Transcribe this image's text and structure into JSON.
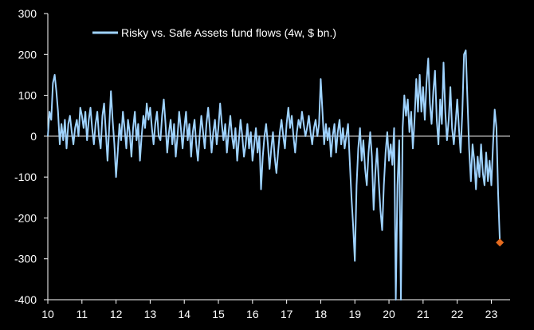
{
  "chart_data": {
    "type": "line",
    "title": "",
    "xlabel": "",
    "ylabel": "",
    "legend": "top-left",
    "grid": false,
    "xlim": [
      2010.0,
      2023.55
    ],
    "ylim": [
      -400,
      300
    ],
    "yticks": [
      300,
      200,
      100,
      0,
      -100,
      -200,
      -300,
      -400
    ],
    "xtick_labels": [
      "10",
      "11",
      "12",
      "13",
      "14",
      "15",
      "16",
      "17",
      "18",
      "19",
      "20",
      "21",
      "22",
      "23"
    ],
    "series": [
      {
        "name": "Risky vs. Safe Assets fund flows (4w, $ bn.)",
        "color": "#9fd3ff",
        "points": [
          [
            2010.0,
            0
          ],
          [
            2010.05,
            60
          ],
          [
            2010.1,
            40
          ],
          [
            2010.15,
            130
          ],
          [
            2010.2,
            150
          ],
          [
            2010.25,
            110
          ],
          [
            2010.3,
            60
          ],
          [
            2010.35,
            -20
          ],
          [
            2010.4,
            30
          ],
          [
            2010.45,
            -10
          ],
          [
            2010.5,
            40
          ],
          [
            2010.55,
            -30
          ],
          [
            2010.6,
            30
          ],
          [
            2010.65,
            50
          ],
          [
            2010.7,
            10
          ],
          [
            2010.75,
            -20
          ],
          [
            2010.8,
            20
          ],
          [
            2010.85,
            40
          ],
          [
            2010.9,
            0
          ],
          [
            2010.95,
            70
          ],
          [
            2011.0,
            50
          ],
          [
            2011.05,
            20
          ],
          [
            2011.1,
            60
          ],
          [
            2011.15,
            -10
          ],
          [
            2011.2,
            40
          ],
          [
            2011.25,
            70
          ],
          [
            2011.3,
            20
          ],
          [
            2011.35,
            -20
          ],
          [
            2011.4,
            30
          ],
          [
            2011.45,
            60
          ],
          [
            2011.5,
            0
          ],
          [
            2011.55,
            -30
          ],
          [
            2011.6,
            50
          ],
          [
            2011.65,
            80
          ],
          [
            2011.7,
            10
          ],
          [
            2011.75,
            -60
          ],
          [
            2011.8,
            20
          ],
          [
            2011.85,
            110
          ],
          [
            2011.9,
            40
          ],
          [
            2011.95,
            -20
          ],
          [
            2012.0,
            -100
          ],
          [
            2012.05,
            -40
          ],
          [
            2012.1,
            30
          ],
          [
            2012.15,
            -10
          ],
          [
            2012.2,
            60
          ],
          [
            2012.25,
            20
          ],
          [
            2012.3,
            -30
          ],
          [
            2012.35,
            40
          ],
          [
            2012.4,
            10
          ],
          [
            2012.45,
            -50
          ],
          [
            2012.5,
            20
          ],
          [
            2012.55,
            60
          ],
          [
            2012.6,
            -10
          ],
          [
            2012.65,
            30
          ],
          [
            2012.7,
            -60
          ],
          [
            2012.75,
            0
          ],
          [
            2012.8,
            50
          ],
          [
            2012.85,
            20
          ],
          [
            2012.9,
            80
          ],
          [
            2012.95,
            40
          ],
          [
            2013.0,
            70
          ],
          [
            2013.05,
            20
          ],
          [
            2013.1,
            -20
          ],
          [
            2013.15,
            30
          ],
          [
            2013.2,
            60
          ],
          [
            2013.25,
            0
          ],
          [
            2013.3,
            -10
          ],
          [
            2013.35,
            50
          ],
          [
            2013.4,
            90
          ],
          [
            2013.45,
            30
          ],
          [
            2013.5,
            -40
          ],
          [
            2013.55,
            10
          ],
          [
            2013.6,
            40
          ],
          [
            2013.65,
            -20
          ],
          [
            2013.7,
            30
          ],
          [
            2013.75,
            -50
          ],
          [
            2013.8,
            0
          ],
          [
            2013.85,
            60
          ],
          [
            2013.9,
            20
          ],
          [
            2013.95,
            -30
          ],
          [
            2014.0,
            20
          ],
          [
            2014.05,
            60
          ],
          [
            2014.1,
            -10
          ],
          [
            2014.15,
            30
          ],
          [
            2014.2,
            -50
          ],
          [
            2014.25,
            10
          ],
          [
            2014.3,
            40
          ],
          [
            2014.35,
            -20
          ],
          [
            2014.4,
            -60
          ],
          [
            2014.45,
            0
          ],
          [
            2014.5,
            50
          ],
          [
            2014.55,
            10
          ],
          [
            2014.6,
            -30
          ],
          [
            2014.65,
            30
          ],
          [
            2014.7,
            70
          ],
          [
            2014.75,
            20
          ],
          [
            2014.8,
            -40
          ],
          [
            2014.85,
            10
          ],
          [
            2014.9,
            40
          ],
          [
            2014.95,
            -20
          ],
          [
            2015.0,
            20
          ],
          [
            2015.05,
            80
          ],
          [
            2015.1,
            30
          ],
          [
            2015.15,
            -10
          ],
          [
            2015.2,
            30
          ],
          [
            2015.25,
            -40
          ],
          [
            2015.3,
            10
          ],
          [
            2015.35,
            50
          ],
          [
            2015.4,
            0
          ],
          [
            2015.45,
            -30
          ],
          [
            2015.5,
            20
          ],
          [
            2015.55,
            -60
          ],
          [
            2015.6,
            -10
          ],
          [
            2015.65,
            40
          ],
          [
            2015.7,
            0
          ],
          [
            2015.75,
            -50
          ],
          [
            2015.8,
            -20
          ],
          [
            2015.85,
            30
          ],
          [
            2015.9,
            -30
          ],
          [
            2015.95,
            10
          ],
          [
            2016.0,
            -60
          ],
          [
            2016.05,
            -20
          ],
          [
            2016.1,
            20
          ],
          [
            2016.15,
            -40
          ],
          [
            2016.2,
            0
          ],
          [
            2016.25,
            -130
          ],
          [
            2016.3,
            -50
          ],
          [
            2016.35,
            0
          ],
          [
            2016.4,
            30
          ],
          [
            2016.45,
            -20
          ],
          [
            2016.5,
            -80
          ],
          [
            2016.55,
            -30
          ],
          [
            2016.6,
            10
          ],
          [
            2016.65,
            -50
          ],
          [
            2016.7,
            -90
          ],
          [
            2016.75,
            -40
          ],
          [
            2016.8,
            10
          ],
          [
            2016.85,
            40
          ],
          [
            2016.9,
            0
          ],
          [
            2016.95,
            -30
          ],
          [
            2017.0,
            30
          ],
          [
            2017.05,
            70
          ],
          [
            2017.1,
            20
          ],
          [
            2017.15,
            50
          ],
          [
            2017.2,
            0
          ],
          [
            2017.25,
            -40
          ],
          [
            2017.3,
            10
          ],
          [
            2017.35,
            40
          ],
          [
            2017.4,
            20
          ],
          [
            2017.45,
            60
          ],
          [
            2017.5,
            30
          ],
          [
            2017.55,
            0
          ],
          [
            2017.6,
            20
          ],
          [
            2017.65,
            50
          ],
          [
            2017.7,
            10
          ],
          [
            2017.75,
            -20
          ],
          [
            2017.8,
            20
          ],
          [
            2017.85,
            40
          ],
          [
            2017.9,
            0
          ],
          [
            2017.95,
            30
          ],
          [
            2018.0,
            140
          ],
          [
            2018.05,
            60
          ],
          [
            2018.1,
            -20
          ],
          [
            2018.15,
            30
          ],
          [
            2018.2,
            -10
          ],
          [
            2018.25,
            20
          ],
          [
            2018.3,
            -50
          ],
          [
            2018.35,
            0
          ],
          [
            2018.4,
            30
          ],
          [
            2018.45,
            -40
          ],
          [
            2018.5,
            10
          ],
          [
            2018.55,
            40
          ],
          [
            2018.6,
            -20
          ],
          [
            2018.65,
            20
          ],
          [
            2018.7,
            -30
          ],
          [
            2018.75,
            0
          ],
          [
            2018.8,
            30
          ],
          [
            2018.85,
            -60
          ],
          [
            2018.9,
            -150
          ],
          [
            2018.95,
            -220
          ],
          [
            2019.0,
            -305
          ],
          [
            2019.05,
            -120
          ],
          [
            2019.1,
            -30
          ],
          [
            2019.15,
            20
          ],
          [
            2019.2,
            -60
          ],
          [
            2019.25,
            -10
          ],
          [
            2019.3,
            -80
          ],
          [
            2019.35,
            -120
          ],
          [
            2019.4,
            -40
          ],
          [
            2019.45,
            10
          ],
          [
            2019.5,
            -50
          ],
          [
            2019.55,
            -180
          ],
          [
            2019.6,
            -90
          ],
          [
            2019.65,
            -30
          ],
          [
            2019.7,
            -110
          ],
          [
            2019.75,
            -180
          ],
          [
            2019.8,
            -230
          ],
          [
            2019.85,
            -120
          ],
          [
            2019.9,
            -40
          ],
          [
            2019.95,
            10
          ],
          [
            2020.0,
            -60
          ],
          [
            2020.05,
            -20
          ],
          [
            2020.1,
            -70
          ],
          [
            2020.15,
            20
          ],
          [
            2020.2,
            -400
          ],
          [
            2020.25,
            -120
          ],
          [
            2020.3,
            -10
          ],
          [
            2020.35,
            -400
          ],
          [
            2020.4,
            20
          ],
          [
            2020.45,
            100
          ],
          [
            2020.5,
            50
          ],
          [
            2020.55,
            90
          ],
          [
            2020.6,
            10
          ],
          [
            2020.65,
            60
          ],
          [
            2020.7,
            -30
          ],
          [
            2020.75,
            40
          ],
          [
            2020.8,
            140
          ],
          [
            2020.85,
            60
          ],
          [
            2020.9,
            150
          ],
          [
            2020.95,
            60
          ],
          [
            2021.0,
            120
          ],
          [
            2021.05,
            40
          ],
          [
            2021.1,
            130
          ],
          [
            2021.15,
            190
          ],
          [
            2021.2,
            80
          ],
          [
            2021.25,
            30
          ],
          [
            2021.3,
            110
          ],
          [
            2021.35,
            160
          ],
          [
            2021.4,
            40
          ],
          [
            2021.45,
            -20
          ],
          [
            2021.5,
            90
          ],
          [
            2021.55,
            30
          ],
          [
            2021.6,
            180
          ],
          [
            2021.65,
            60
          ],
          [
            2021.7,
            -10
          ],
          [
            2021.75,
            40
          ],
          [
            2021.8,
            120
          ],
          [
            2021.85,
            20
          ],
          [
            2021.9,
            -20
          ],
          [
            2021.95,
            30
          ],
          [
            2022.0,
            90
          ],
          [
            2022.05,
            20
          ],
          [
            2022.1,
            -40
          ],
          [
            2022.15,
            60
          ],
          [
            2022.2,
            200
          ],
          [
            2022.25,
            210
          ],
          [
            2022.3,
            90
          ],
          [
            2022.35,
            -30
          ],
          [
            2022.4,
            -110
          ],
          [
            2022.45,
            -20
          ],
          [
            2022.5,
            -60
          ],
          [
            2022.55,
            -130
          ],
          [
            2022.6,
            -50
          ],
          [
            2022.65,
            -100
          ],
          [
            2022.7,
            -20
          ],
          [
            2022.75,
            -90
          ],
          [
            2022.8,
            -120
          ],
          [
            2022.85,
            -40
          ],
          [
            2022.9,
            -110
          ],
          [
            2022.95,
            -60
          ],
          [
            2023.0,
            -120
          ],
          [
            2023.05,
            -20
          ],
          [
            2023.1,
            65
          ],
          [
            2023.15,
            20
          ],
          [
            2023.2,
            -140
          ],
          [
            2023.25,
            -260
          ]
        ],
        "end_marker": {
          "x": 2023.25,
          "y": -260,
          "color": "#e56b1f"
        }
      }
    ]
  }
}
